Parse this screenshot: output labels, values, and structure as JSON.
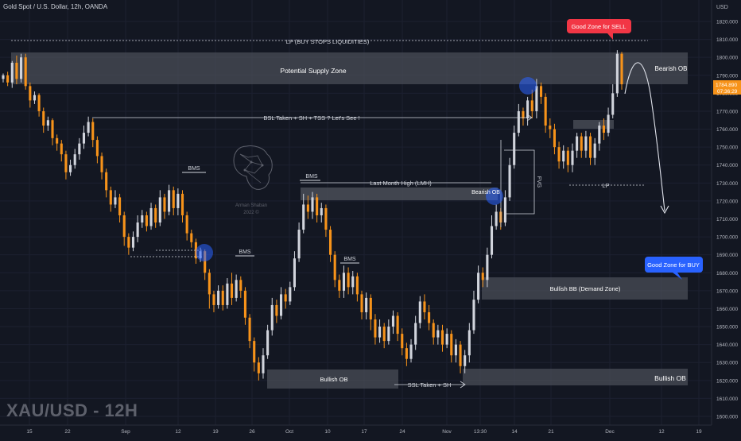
{
  "header": {
    "symbol_title": "Gold Spot / U.S. Dollar, 12h, OANDA"
  },
  "watermark": "XAU/USD - 12H",
  "logo_text": [
    "Arman Shaban",
    "2022 ©"
  ],
  "price_axis": {
    "currency": "USD",
    "ticks": [
      "1820.000",
      "1810.000",
      "1800.000",
      "1790.000",
      "1780.000",
      "1770.000",
      "1760.000",
      "1750.000",
      "1740.000",
      "1730.000",
      "1720.000",
      "1710.000",
      "1700.000",
      "1690.000",
      "1680.000",
      "1670.000",
      "1660.000",
      "1650.000",
      "1640.000",
      "1630.000",
      "1620.000",
      "1610.000",
      "1600.000"
    ],
    "current_price": "1784.890",
    "countdown": "07:36:29"
  },
  "time_axis": {
    "ticks": [
      "15",
      "22",
      "Sep",
      "12",
      "19",
      "26",
      "Oct",
      "10",
      "17",
      "24",
      "Nov",
      "13:30",
      "14",
      "21",
      "Dec",
      "12",
      "19"
    ]
  },
  "colors": {
    "bull": "#d1d4dc",
    "bear": "#f7931a",
    "zone": "#4a4d57",
    "blue_circle": "#2962ff",
    "sell_label": "#f23645",
    "buy_label": "#2962ff"
  },
  "annotations": {
    "lp_top": "LP (BUY STOPS LIQUIDITIES)",
    "supply_zone": "Potential Supply Zone",
    "bearish_ob_top": "Bearish OB",
    "bsl": "BSL Taken + SH + TSS ? Let's See !",
    "bms1": "BMS",
    "bms2": "BMS",
    "bms3": "BMS",
    "bms4": "BMS",
    "lmh": "Last Month High (LMH)",
    "bearish_ob_mid": "Bearish OB",
    "fvg": "FVG",
    "lp_mid": "LP",
    "bullish_bb": "Bullish BB (Demand Zone)",
    "bullish_ob_left": "Bullish OB",
    "bullish_ob_right": "Bullish OB",
    "ssl": "SSL Taken + SH",
    "good_sell": "Good Zone for SELL",
    "good_buy": "Good Zone for BUY"
  },
  "chart_data": {
    "type": "candlestick",
    "title": "Gold Spot / U.S. Dollar, 12h, OANDA",
    "ylabel": "USD",
    "ylim": [
      1598,
      1830
    ],
    "candles": [
      [
        1788,
        1790,
        1786,
        1791
      ],
      [
        1790,
        1786,
        1784,
        1792
      ],
      [
        1786,
        1797,
        1783,
        1798
      ],
      [
        1797,
        1788,
        1785,
        1801
      ],
      [
        1788,
        1800,
        1786,
        1802
      ],
      [
        1800,
        1784,
        1782,
        1802
      ],
      [
        1784,
        1776,
        1772,
        1786
      ],
      [
        1776,
        1779,
        1774,
        1781
      ],
      [
        1779,
        1770,
        1767,
        1780
      ],
      [
        1770,
        1762,
        1758,
        1772
      ],
      [
        1762,
        1765,
        1759,
        1767
      ],
      [
        1765,
        1755,
        1751,
        1766
      ],
      [
        1755,
        1752,
        1748,
        1757
      ],
      [
        1752,
        1746,
        1742,
        1754
      ],
      [
        1746,
        1736,
        1732,
        1748
      ],
      [
        1736,
        1740,
        1734,
        1743
      ],
      [
        1740,
        1746,
        1738,
        1749
      ],
      [
        1746,
        1752,
        1743,
        1755
      ],
      [
        1752,
        1758,
        1749,
        1762
      ],
      [
        1758,
        1764,
        1756,
        1767
      ],
      [
        1764,
        1754,
        1750,
        1766
      ],
      [
        1754,
        1745,
        1741,
        1756
      ],
      [
        1745,
        1736,
        1732,
        1747
      ],
      [
        1736,
        1726,
        1722,
        1738
      ],
      [
        1726,
        1718,
        1714,
        1728
      ],
      [
        1718,
        1722,
        1716,
        1726
      ],
      [
        1722,
        1712,
        1708,
        1724
      ],
      [
        1712,
        1700,
        1695,
        1714
      ],
      [
        1700,
        1694,
        1690,
        1702
      ],
      [
        1694,
        1700,
        1692,
        1703
      ],
      [
        1700,
        1708,
        1697,
        1712
      ],
      [
        1708,
        1712,
        1705,
        1715
      ],
      [
        1712,
        1706,
        1703,
        1714
      ],
      [
        1706,
        1716,
        1704,
        1719
      ],
      [
        1716,
        1708,
        1705,
        1718
      ],
      [
        1708,
        1722,
        1706,
        1726
      ],
      [
        1722,
        1714,
        1710,
        1724
      ],
      [
        1714,
        1726,
        1712,
        1729
      ],
      [
        1726,
        1716,
        1712,
        1728
      ],
      [
        1716,
        1724,
        1712,
        1727
      ],
      [
        1724,
        1712,
        1708,
        1726
      ],
      [
        1712,
        1702,
        1698,
        1714
      ],
      [
        1702,
        1697,
        1694,
        1704
      ],
      [
        1697,
        1688,
        1685,
        1699
      ],
      [
        1688,
        1692,
        1686,
        1694
      ],
      [
        1692,
        1680,
        1676,
        1693
      ],
      [
        1680,
        1668,
        1660,
        1682
      ],
      [
        1668,
        1662,
        1658,
        1670
      ],
      [
        1662,
        1670,
        1660,
        1673
      ],
      [
        1670,
        1662,
        1659,
        1673
      ],
      [
        1662,
        1674,
        1660,
        1677
      ],
      [
        1674,
        1666,
        1662,
        1680
      ],
      [
        1666,
        1676,
        1664,
        1679
      ],
      [
        1676,
        1670,
        1666,
        1678
      ],
      [
        1670,
        1655,
        1651,
        1672
      ],
      [
        1655,
        1642,
        1638,
        1657
      ],
      [
        1642,
        1630,
        1625,
        1644
      ],
      [
        1630,
        1624,
        1620,
        1633
      ],
      [
        1624,
        1634,
        1621,
        1638
      ],
      [
        1634,
        1648,
        1632,
        1651
      ],
      [
        1648,
        1662,
        1645,
        1666
      ],
      [
        1662,
        1656,
        1652,
        1665
      ],
      [
        1656,
        1668,
        1654,
        1672
      ],
      [
        1668,
        1664,
        1660,
        1671
      ],
      [
        1664,
        1672,
        1662,
        1675
      ],
      [
        1672,
        1688,
        1670,
        1692
      ],
      [
        1688,
        1704,
        1686,
        1708
      ],
      [
        1704,
        1718,
        1702,
        1724
      ],
      [
        1718,
        1714,
        1710,
        1723
      ],
      [
        1714,
        1722,
        1710,
        1725
      ],
      [
        1722,
        1712,
        1708,
        1724
      ],
      [
        1712,
        1716,
        1708,
        1719
      ],
      [
        1716,
        1704,
        1700,
        1718
      ],
      [
        1704,
        1690,
        1686,
        1706
      ],
      [
        1690,
        1676,
        1672,
        1692
      ],
      [
        1676,
        1670,
        1666,
        1679
      ],
      [
        1670,
        1680,
        1666,
        1684
      ],
      [
        1680,
        1672,
        1668,
        1683
      ],
      [
        1672,
        1678,
        1668,
        1681
      ],
      [
        1678,
        1668,
        1664,
        1680
      ],
      [
        1668,
        1658,
        1654,
        1670
      ],
      [
        1658,
        1666,
        1654,
        1669
      ],
      [
        1666,
        1654,
        1648,
        1668
      ],
      [
        1654,
        1644,
        1640,
        1657
      ],
      [
        1644,
        1650,
        1641,
        1654
      ],
      [
        1650,
        1642,
        1638,
        1652
      ],
      [
        1642,
        1650,
        1640,
        1654
      ],
      [
        1650,
        1656,
        1646,
        1659
      ],
      [
        1656,
        1646,
        1642,
        1658
      ],
      [
        1646,
        1638,
        1634,
        1649
      ],
      [
        1638,
        1632,
        1628,
        1641
      ],
      [
        1632,
        1640,
        1630,
        1643
      ],
      [
        1640,
        1652,
        1637,
        1656
      ],
      [
        1652,
        1664,
        1649,
        1667
      ],
      [
        1664,
        1658,
        1654,
        1668
      ],
      [
        1658,
        1652,
        1648,
        1662
      ],
      [
        1652,
        1644,
        1640,
        1654
      ],
      [
        1644,
        1648,
        1640,
        1651
      ],
      [
        1648,
        1640,
        1636,
        1651
      ],
      [
        1640,
        1646,
        1638,
        1649
      ],
      [
        1646,
        1634,
        1630,
        1648
      ],
      [
        1634,
        1640,
        1630,
        1643
      ],
      [
        1640,
        1628,
        1624,
        1642
      ],
      [
        1628,
        1634,
        1624,
        1637
      ],
      [
        1634,
        1648,
        1630,
        1652
      ],
      [
        1648,
        1665,
        1646,
        1670
      ],
      [
        1665,
        1680,
        1663,
        1684
      ],
      [
        1680,
        1676,
        1672,
        1683
      ],
      [
        1676,
        1690,
        1672,
        1694
      ],
      [
        1690,
        1706,
        1688,
        1712
      ],
      [
        1706,
        1714,
        1704,
        1718
      ],
      [
        1714,
        1708,
        1704,
        1716
      ],
      [
        1708,
        1722,
        1706,
        1726
      ],
      [
        1722,
        1740,
        1720,
        1744
      ],
      [
        1740,
        1758,
        1738,
        1762
      ],
      [
        1758,
        1770,
        1756,
        1774
      ],
      [
        1770,
        1766,
        1762,
        1772
      ],
      [
        1766,
        1776,
        1762,
        1778
      ],
      [
        1776,
        1770,
        1766,
        1782
      ],
      [
        1770,
        1784,
        1766,
        1788
      ],
      [
        1784,
        1778,
        1774,
        1786
      ],
      [
        1778,
        1762,
        1758,
        1780
      ],
      [
        1762,
        1760,
        1755,
        1766
      ],
      [
        1760,
        1750,
        1746,
        1763
      ],
      [
        1750,
        1742,
        1738,
        1753
      ],
      [
        1742,
        1748,
        1738,
        1751
      ],
      [
        1748,
        1740,
        1736,
        1750
      ],
      [
        1740,
        1748,
        1736,
        1752
      ],
      [
        1748,
        1756,
        1744,
        1758
      ],
      [
        1756,
        1748,
        1744,
        1758
      ],
      [
        1748,
        1756,
        1744,
        1759
      ],
      [
        1756,
        1744,
        1740,
        1758
      ],
      [
        1744,
        1752,
        1740,
        1755
      ],
      [
        1752,
        1762,
        1748,
        1764
      ],
      [
        1762,
        1758,
        1754,
        1766
      ],
      [
        1758,
        1768,
        1756,
        1772
      ],
      [
        1768,
        1780,
        1766,
        1785
      ],
      [
        1780,
        1802,
        1778,
        1804
      ],
      [
        1802,
        1785,
        1782,
        1803
      ]
    ]
  }
}
